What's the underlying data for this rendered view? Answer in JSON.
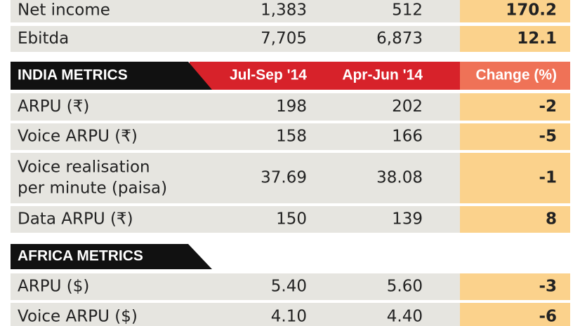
{
  "top_rows": [
    {
      "label": "Net income",
      "col1": "1,383",
      "col2": "512",
      "change": "170.2"
    },
    {
      "label": "Ebitda",
      "col1": "7,705",
      "col2": "6,873",
      "change": "12.1"
    }
  ],
  "india": {
    "header": {
      "title": "INDIA METRICS",
      "col1": "Jul-Sep '14",
      "col2": "Apr-Jun '14",
      "change": "Change (%)"
    },
    "rows": [
      {
        "label": [
          "ARPU (₹)"
        ],
        "col1": "198",
        "col2": "202",
        "change": "-2"
      },
      {
        "label": [
          "Voice ARPU (₹)"
        ],
        "col1": "158",
        "col2": "166",
        "change": "-5"
      },
      {
        "label": [
          "Voice realisation",
          "per minute (paisa)"
        ],
        "col1": "37.69",
        "col2": "38.08",
        "change": "-1"
      },
      {
        "label": [
          "Data ARPU (₹)"
        ],
        "col1": "150",
        "col2": "139",
        "change": "8"
      }
    ]
  },
  "africa": {
    "header": {
      "title": "AFRICA METRICS"
    },
    "rows": [
      {
        "label": [
          "ARPU ($)"
        ],
        "col1": "5.40",
        "col2": "5.60",
        "change": "-3"
      },
      {
        "label": [
          "Voice ARPU ($)"
        ],
        "col1": "4.10",
        "col2": "4.40",
        "change": "-6"
      }
    ]
  }
}
